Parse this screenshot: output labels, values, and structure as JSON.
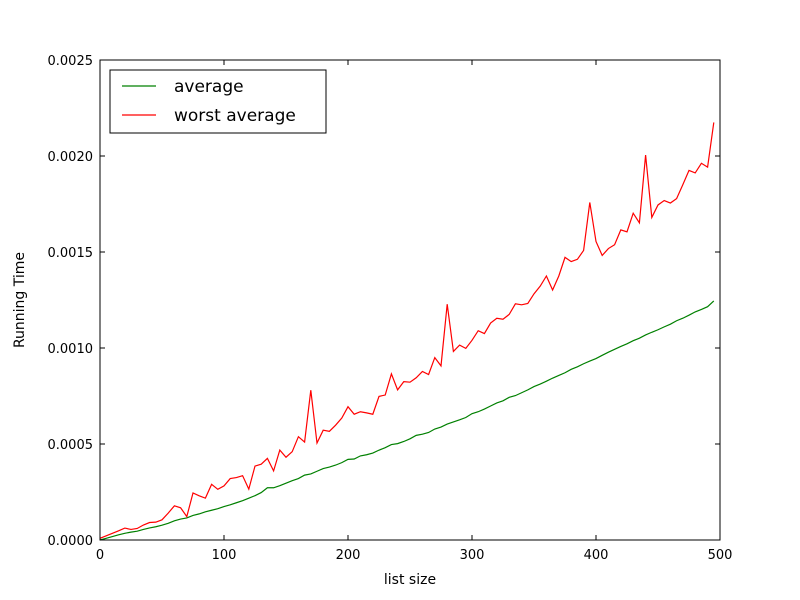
{
  "chart_data": {
    "type": "line",
    "title": "",
    "xlabel": "list size",
    "ylabel": "Running Time",
    "xlim": [
      0,
      500
    ],
    "ylim": [
      0,
      0.0025
    ],
    "xticks": [
      0,
      100,
      200,
      300,
      400,
      500
    ],
    "xtick_labels": [
      "0",
      "100",
      "200",
      "300",
      "400",
      "500"
    ],
    "yticks": [
      0,
      0.0005,
      0.001,
      0.0015,
      0.002,
      0.0025
    ],
    "ytick_labels": [
      "0.0000",
      "0.0005",
      "0.0010",
      "0.0015",
      "0.0020",
      "0.0025"
    ],
    "grid": false,
    "legend_position": "top-left",
    "x": [
      0,
      5,
      10,
      15,
      20,
      25,
      30,
      35,
      40,
      45,
      50,
      55,
      60,
      65,
      70,
      75,
      80,
      85,
      90,
      95,
      100,
      105,
      110,
      115,
      120,
      125,
      130,
      135,
      140,
      145,
      150,
      155,
      160,
      165,
      170,
      175,
      180,
      185,
      190,
      195,
      200,
      205,
      210,
      215,
      220,
      225,
      230,
      235,
      240,
      245,
      250,
      255,
      260,
      265,
      270,
      275,
      280,
      285,
      290,
      295,
      300,
      305,
      310,
      315,
      320,
      325,
      330,
      335,
      340,
      345,
      350,
      355,
      360,
      365,
      370,
      375,
      380,
      385,
      390,
      395,
      400,
      405,
      410,
      415,
      420,
      425,
      430,
      435,
      440,
      445,
      450,
      455,
      460,
      465,
      470,
      475,
      480,
      485,
      490,
      495
    ],
    "series": [
      {
        "name": "average",
        "color": "#008000",
        "values": [
          0.0,
          9e-06,
          1.8e-05,
          2.7e-05,
          3.5e-05,
          4.1e-05,
          4.6e-05,
          5.5e-05,
          6.3e-05,
          6.9e-05,
          7.7e-05,
          8.7e-05,
          0.0001,
          0.000109,
          0.000115,
          0.000128,
          0.000136,
          0.000147,
          0.000155,
          0.000163,
          0.000174,
          0.000183,
          0.000194,
          0.000205,
          0.000218,
          0.000231,
          0.000247,
          0.000272,
          0.000272,
          0.000283,
          0.000296,
          0.000309,
          0.00032,
          0.000338,
          0.000344,
          0.000358,
          0.000372,
          0.00038,
          0.00039,
          0.000403,
          0.00042,
          0.000422,
          0.000438,
          0.000444,
          0.000453,
          0.000468,
          0.000481,
          0.000497,
          0.000502,
          0.000513,
          0.000527,
          0.000545,
          0.000551,
          0.00056,
          0.000578,
          0.000588,
          0.000604,
          0.000615,
          0.000626,
          0.000638,
          0.000658,
          0.000668,
          0.000682,
          0.000698,
          0.000714,
          0.000725,
          0.000743,
          0.000752,
          0.000767,
          0.000782,
          0.000799,
          0.000812,
          0.000827,
          0.000843,
          0.000857,
          0.000871,
          0.000889,
          0.000902,
          0.000918,
          0.000932,
          0.000945,
          0.000962,
          0.000978,
          0.000993,
          0.001008,
          0.001022,
          0.001038,
          0.001051,
          0.001068,
          0.001082,
          0.001095,
          0.00111,
          0.001124,
          0.001142,
          0.001155,
          0.001171,
          0.001188,
          0.001201,
          0.001215,
          0.001245
        ]
      },
      {
        "name": "worst average",
        "color": "#ff0000",
        "values": [
          9e-06,
          2.2e-05,
          3.5e-05,
          4.8e-05,
          6.2e-05,
          5.5e-05,
          6e-05,
          7.8e-05,
          9.1e-05,
          9.3e-05,
          0.000105,
          0.00014,
          0.000178,
          0.000168,
          0.000122,
          0.000245,
          0.00023,
          0.000218,
          0.00029,
          0.000264,
          0.000282,
          0.00032,
          0.000325,
          0.000335,
          0.000265,
          0.000385,
          0.000395,
          0.000425,
          0.00036,
          0.000468,
          0.000431,
          0.00046,
          0.000538,
          0.00051,
          0.00078,
          0.000505,
          0.000572,
          0.000566,
          0.000598,
          0.000635,
          0.000694,
          0.000655,
          0.000668,
          0.000662,
          0.000655,
          0.000748,
          0.000755,
          0.000865,
          0.000782,
          0.000825,
          0.000822,
          0.000845,
          0.000878,
          0.000862,
          0.00095,
          0.000907,
          0.001228,
          0.000982,
          0.001015,
          0.000998,
          0.00104,
          0.00109,
          0.001075,
          0.00113,
          0.001155,
          0.00115,
          0.001175,
          0.00123,
          0.001225,
          0.001232,
          0.001282,
          0.001322,
          0.001375,
          0.001302,
          0.001375,
          0.001472,
          0.00145,
          0.001462,
          0.001508,
          0.001758,
          0.001555,
          0.001482,
          0.001518,
          0.001538,
          0.001615,
          0.001605,
          0.001702,
          0.001652,
          0.002005,
          0.00168,
          0.001745,
          0.001768,
          0.001755,
          0.001778,
          0.00185,
          0.001925,
          0.001912,
          0.001962,
          0.001942,
          0.002175
        ]
      }
    ]
  }
}
